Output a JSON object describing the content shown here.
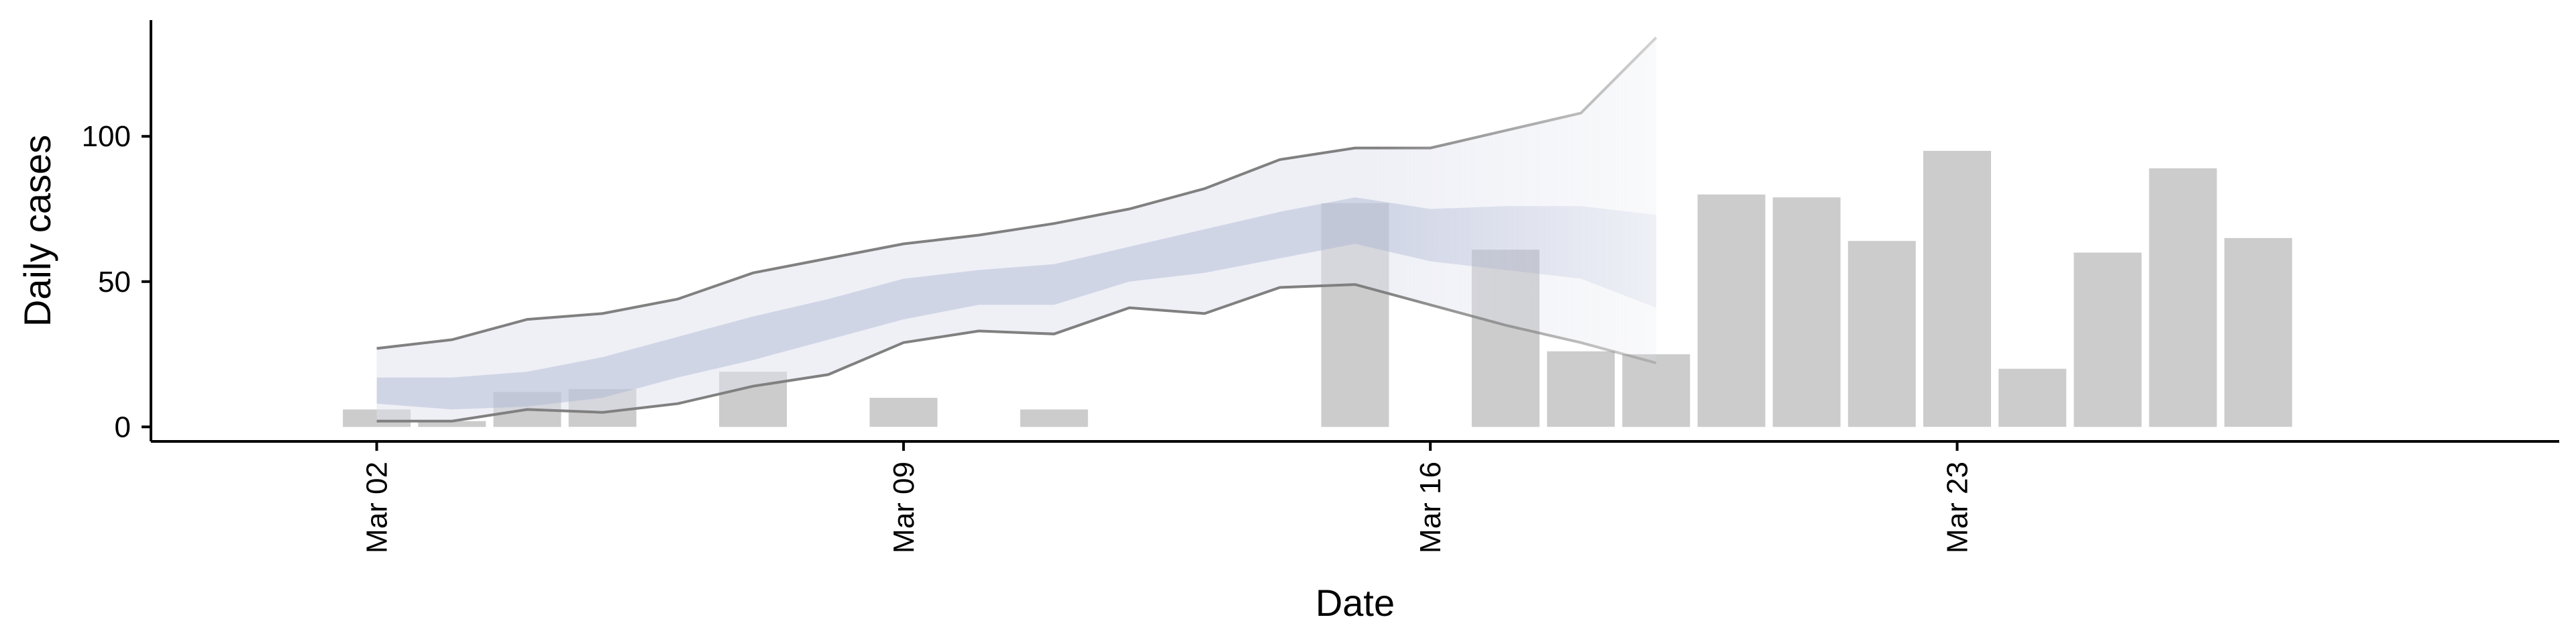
{
  "chart_data": {
    "type": "bar",
    "xlabel": "Date",
    "ylabel": "Daily cases",
    "ylim": [
      -5,
      140
    ],
    "xlim": [
      "2020-02-28",
      "2020-03-31"
    ],
    "grid": false,
    "x_ticks": [
      {
        "date": "2020-03-02",
        "label": "Mar 02"
      },
      {
        "date": "2020-03-09",
        "label": "Mar 09"
      },
      {
        "date": "2020-03-16",
        "label": "Mar 16"
      },
      {
        "date": "2020-03-23",
        "label": "Mar 23"
      }
    ],
    "y_ticks": [
      {
        "value": 0,
        "label": "0"
      },
      {
        "value": 50,
        "label": "50"
      },
      {
        "value": 100,
        "label": "100"
      }
    ],
    "bars": [
      {
        "date": "2020-03-02",
        "value": 6
      },
      {
        "date": "2020-03-03",
        "value": 2
      },
      {
        "date": "2020-03-04",
        "value": 12
      },
      {
        "date": "2020-03-05",
        "value": 13
      },
      {
        "date": "2020-03-07",
        "value": 19
      },
      {
        "date": "2020-03-09",
        "value": 10
      },
      {
        "date": "2020-03-11",
        "value": 6
      },
      {
        "date": "2020-03-15",
        "value": 77
      },
      {
        "date": "2020-03-17",
        "value": 61
      },
      {
        "date": "2020-03-18",
        "value": 26
      },
      {
        "date": "2020-03-19",
        "value": 25
      },
      {
        "date": "2020-03-20",
        "value": 80
      },
      {
        "date": "2020-03-21",
        "value": 79
      },
      {
        "date": "2020-03-22",
        "value": 64
      },
      {
        "date": "2020-03-23",
        "value": 95
      },
      {
        "date": "2020-03-24",
        "value": 20
      },
      {
        "date": "2020-03-25",
        "value": 60
      },
      {
        "date": "2020-03-26",
        "value": 89
      },
      {
        "date": "2020-03-27",
        "value": 65
      }
    ],
    "estimate": {
      "dates": [
        "2020-03-02",
        "2020-03-03",
        "2020-03-04",
        "2020-03-05",
        "2020-03-06",
        "2020-03-07",
        "2020-03-08",
        "2020-03-09",
        "2020-03-10",
        "2020-03-11",
        "2020-03-12",
        "2020-03-13",
        "2020-03-14",
        "2020-03-15",
        "2020-03-16",
        "2020-03-17",
        "2020-03-18",
        "2020-03-19"
      ],
      "outer_upper": [
        27,
        30,
        37,
        39,
        44,
        53,
        58,
        63,
        66,
        70,
        75,
        82,
        92,
        96,
        96,
        102,
        108,
        134
      ],
      "outer_lower": [
        2,
        2,
        6,
        5,
        8,
        14,
        18,
        29,
        33,
        32,
        41,
        39,
        48,
        49,
        42,
        35,
        29,
        22
      ],
      "inner_upper": [
        17,
        17,
        19,
        24,
        31,
        38,
        44,
        51,
        54,
        56,
        62,
        68,
        74,
        79,
        75,
        76,
        76,
        73
      ],
      "inner_lower": [
        8,
        6,
        7,
        10,
        17,
        23,
        30,
        37,
        42,
        42,
        50,
        53,
        58,
        63,
        57,
        54,
        51,
        41
      ],
      "colors": {
        "outer_band": "#dfe2ee",
        "inner_band": "#aab4d2",
        "bound_line": "#808080",
        "bar": "#cccccc"
      }
    }
  }
}
